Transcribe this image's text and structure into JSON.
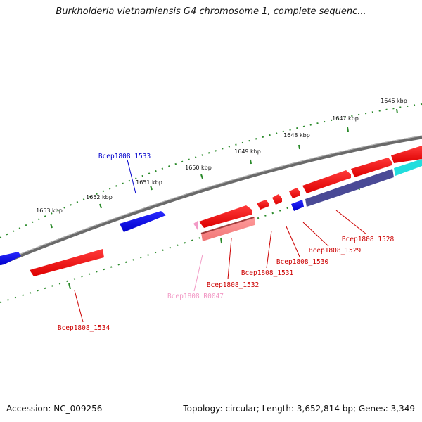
{
  "title": "Burkholderia vietnamiensis G4 chromosome 1, complete sequenc...",
  "footer": {
    "accession": "Accession: NC_009256",
    "stats": "Topology: circular; Length: 3,652,814 bp; Genes: 3,349"
  },
  "ticks": [
    "1646 kbp",
    "1647 kbp",
    "1648 kbp",
    "1649 kbp",
    "1650 kbp",
    "1651 kbp",
    "1652 kbp",
    "1653 kbp"
  ],
  "genes": [
    {
      "name": "Bcep1808_1528",
      "color": "#cc0000"
    },
    {
      "name": "Bcep1808_1529",
      "color": "#cc0000"
    },
    {
      "name": "Bcep1808_1530",
      "color": "#cc0000"
    },
    {
      "name": "Bcep1808_1531",
      "color": "#cc0000"
    },
    {
      "name": "Bcep1808_1532",
      "color": "#cc0000"
    },
    {
      "name": "Bcep1808_R0047",
      "color": "#f29ac6"
    },
    {
      "name": "Bcep1808_1533",
      "color": "#0000cc"
    },
    {
      "name": "Bcep1808_1534",
      "color": "#cc0000"
    }
  ]
}
